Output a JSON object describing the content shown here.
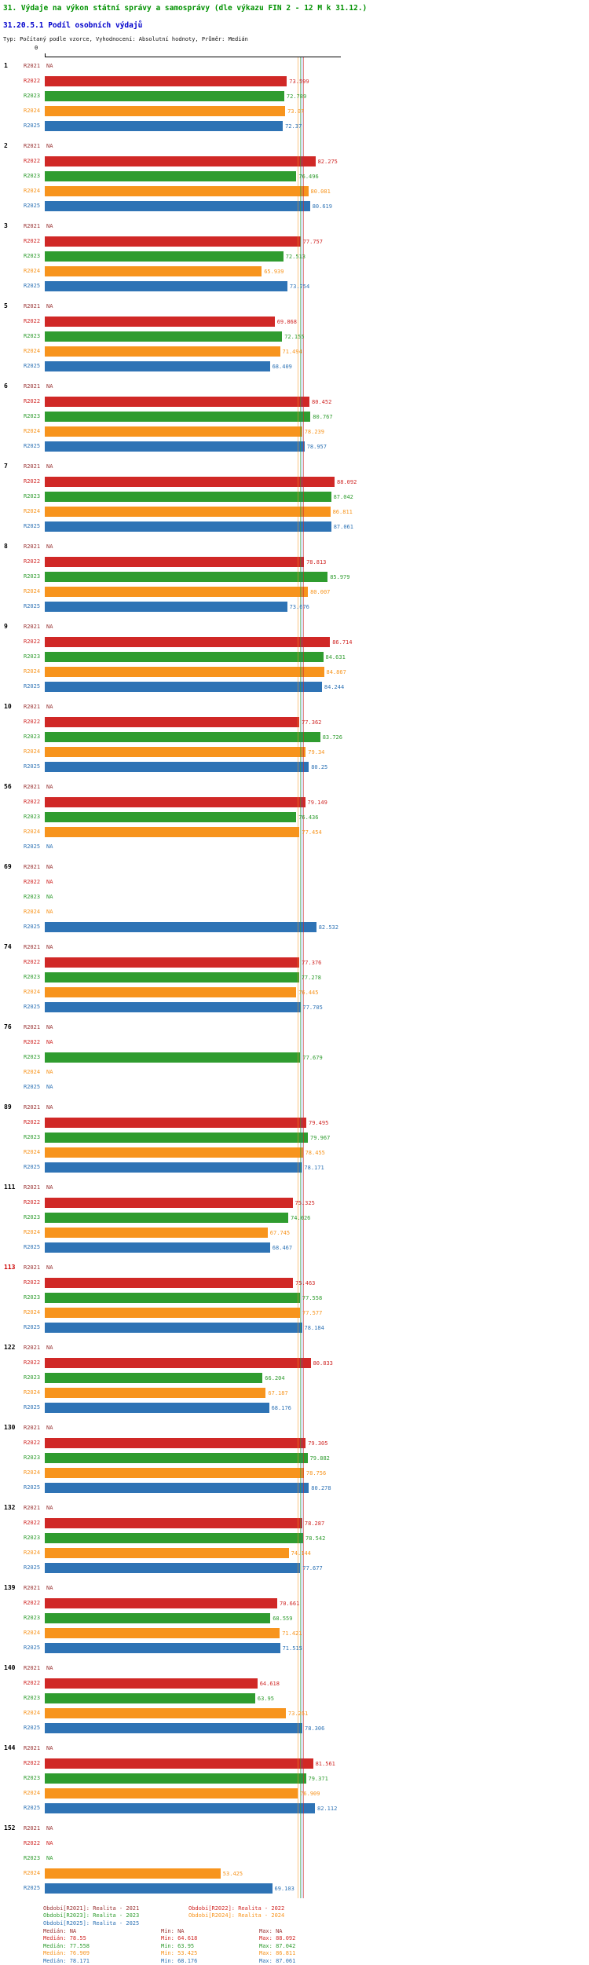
{
  "header": {
    "title": "31. Výdaje na výkon státní správy a samosprávy (dle výkazu FIN 2 - 12 M k 31.12.)",
    "subtitle": "31.20.5.1 Podíl osobních výdajů",
    "meta": "Typ: Počítaný podle vzorce, Vyhodnocení: Absolutní hodnoty, Průměr: Medián"
  },
  "chart_data": {
    "type": "bar",
    "orientation": "horizontal",
    "title": "31.20.5.1 Podíl osobních výdajů",
    "value_axis": {
      "min": 0,
      "max": 90,
      "tick_labels": [
        "0"
      ],
      "position": "top"
    },
    "na_text": "NA",
    "highlight_color": "#cc0000",
    "series": [
      {
        "key": "R2021",
        "color": "#993333",
        "legend": "Období[R2021]: Realita - 2021",
        "median": "NA",
        "min": "NA",
        "max": "NA"
      },
      {
        "key": "R2022",
        "color": "#d02826",
        "legend": "Období[R2022]: Realita - 2022",
        "median": "78.55",
        "min": "64.618",
        "max": "88.092"
      },
      {
        "key": "R2023",
        "color": "#2f9c2f",
        "legend": "Období[R2023]: Realita - 2023",
        "median": "77.558",
        "min": "63.95",
        "max": "87.042"
      },
      {
        "key": "R2024",
        "color": "#f7941d",
        "legend": "Období[R2024]: Realita - 2024",
        "median": "76.909",
        "min": "53.425",
        "max": "86.811"
      },
      {
        "key": "R2025",
        "color": "#2e73b5",
        "legend": "Období[R2025]: Realita - 2025",
        "median": "78.171",
        "min": "68.176",
        "max": "87.061"
      }
    ],
    "groups": [
      {
        "id": "1",
        "highlight": false,
        "values": [
          "NA",
          "73.599",
          "72.789",
          "73.07",
          "72.37"
        ]
      },
      {
        "id": "2",
        "highlight": false,
        "values": [
          "NA",
          "82.275",
          "76.496",
          "80.081",
          "80.619"
        ]
      },
      {
        "id": "3",
        "highlight": false,
        "values": [
          "NA",
          "77.757",
          "72.513",
          "65.939",
          "73.754"
        ]
      },
      {
        "id": "5",
        "highlight": false,
        "values": [
          "NA",
          "69.868",
          "72.155",
          "71.494",
          "68.409"
        ]
      },
      {
        "id": "6",
        "highlight": false,
        "values": [
          "NA",
          "80.452",
          "80.767",
          "78.239",
          "78.957"
        ]
      },
      {
        "id": "7",
        "highlight": false,
        "values": [
          "NA",
          "88.092",
          "87.042",
          "86.811",
          "87.061"
        ]
      },
      {
        "id": "8",
        "highlight": false,
        "values": [
          "NA",
          "78.813",
          "85.979",
          "80.007",
          "73.676"
        ]
      },
      {
        "id": "9",
        "highlight": false,
        "values": [
          "NA",
          "86.714",
          "84.631",
          "84.867",
          "84.244"
        ]
      },
      {
        "id": "10",
        "highlight": false,
        "values": [
          "NA",
          "77.362",
          "83.726",
          "79.34",
          "80.25"
        ]
      },
      {
        "id": "56",
        "highlight": false,
        "values": [
          "NA",
          "79.149",
          "76.436",
          "77.454",
          "NA"
        ]
      },
      {
        "id": "69",
        "highlight": false,
        "values": [
          "NA",
          "NA",
          "NA",
          "NA",
          "82.532"
        ]
      },
      {
        "id": "74",
        "highlight": false,
        "values": [
          "NA",
          "77.376",
          "77.278",
          "76.445",
          "77.705"
        ]
      },
      {
        "id": "76",
        "highlight": false,
        "values": [
          "NA",
          "NA",
          "77.679",
          "NA",
          "NA"
        ]
      },
      {
        "id": "89",
        "highlight": false,
        "values": [
          "NA",
          "79.495",
          "79.967",
          "78.455",
          "78.171"
        ]
      },
      {
        "id": "111",
        "highlight": false,
        "values": [
          "NA",
          "75.325",
          "74.026",
          "67.745",
          "68.467"
        ]
      },
      {
        "id": "113",
        "highlight": true,
        "values": [
          "NA",
          "75.463",
          "77.558",
          "77.577",
          "78.184"
        ]
      },
      {
        "id": "122",
        "highlight": false,
        "values": [
          "NA",
          "80.833",
          "66.204",
          "67.187",
          "68.176"
        ]
      },
      {
        "id": "130",
        "highlight": false,
        "values": [
          "NA",
          "79.305",
          "79.882",
          "78.756",
          "80.278"
        ]
      },
      {
        "id": "132",
        "highlight": false,
        "values": [
          "NA",
          "78.287",
          "78.542",
          "74.144",
          "77.677"
        ]
      },
      {
        "id": "139",
        "highlight": false,
        "values": [
          "NA",
          "70.661",
          "68.559",
          "71.421",
          "71.515"
        ]
      },
      {
        "id": "140",
        "highlight": false,
        "values": [
          "NA",
          "64.618",
          "63.95",
          "73.261",
          "78.306"
        ]
      },
      {
        "id": "144",
        "highlight": false,
        "values": [
          "NA",
          "81.561",
          "79.371",
          "76.909",
          "82.112"
        ]
      },
      {
        "id": "152",
        "highlight": false,
        "values": [
          "NA",
          "NA",
          "NA",
          "53.425",
          "69.103"
        ]
      }
    ]
  },
  "stats_labels": {
    "median": "Medián",
    "min": "Min",
    "max": "Max"
  }
}
